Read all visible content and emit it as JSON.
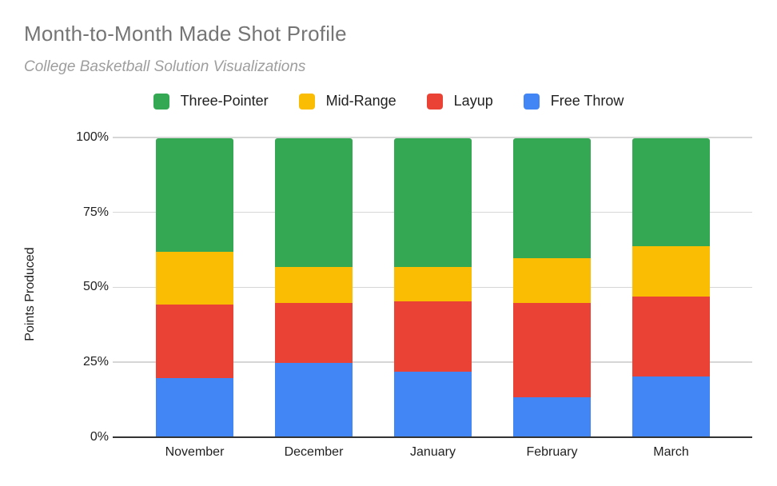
{
  "title": "Month-to-Month Made Shot Profile",
  "subtitle": "College Basketball Solution Visualizations",
  "chart_data": {
    "type": "bar",
    "variant": "100%-stacked-column",
    "title": "Month-to-Month Made Shot Profile",
    "subtitle": "College Basketball Solution Visualizations",
    "categories": [
      "November",
      "December",
      "January",
      "February",
      "March"
    ],
    "series": [
      {
        "name": "Free Throw",
        "color": "#4285F4",
        "values": [
          20.0,
          25.0,
          22.0,
          13.5,
          20.5
        ]
      },
      {
        "name": "Layup",
        "color": "#EA4335",
        "values": [
          24.5,
          20.0,
          23.5,
          31.5,
          26.5
        ]
      },
      {
        "name": "Mid-Range",
        "color": "#FBBC04",
        "values": [
          17.5,
          12.0,
          11.5,
          15.0,
          17.0
        ]
      },
      {
        "name": "Three-Pointer",
        "color": "#34A853",
        "values": [
          38.0,
          43.0,
          43.0,
          40.0,
          36.0
        ]
      }
    ],
    "stack_order_note": "series listed bottom-to-top; values are percent of points produced",
    "legend": [
      "Three-Pointer",
      "Mid-Range",
      "Layup",
      "Free Throw"
    ],
    "legend_position": "top",
    "xlabel": "",
    "ylabel": "Points Produced",
    "ylim": [
      0,
      100
    ],
    "yticks": [
      {
        "value": 0,
        "label": "0%"
      },
      {
        "value": 25,
        "label": "25%"
      },
      {
        "value": 50,
        "label": "50%"
      },
      {
        "value": 75,
        "label": "75%"
      },
      {
        "value": 100,
        "label": "100%"
      }
    ],
    "grid": true,
    "colors": {
      "three_pointer": "#34A853",
      "mid_range": "#FBBC04",
      "layup": "#EA4335",
      "free_throw": "#4285F4",
      "gridline": "#d6d6d6",
      "axis_line": "#333333",
      "title_text": "#757575",
      "subtitle_text": "#9e9e9e",
      "axis_text": "#1f1f1f"
    }
  }
}
